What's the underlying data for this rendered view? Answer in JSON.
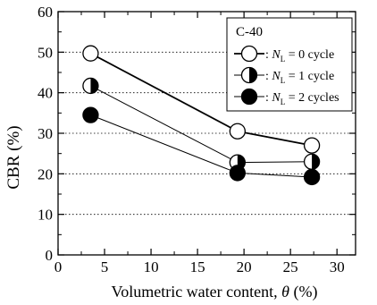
{
  "chart_data": {
    "type": "line",
    "title": "",
    "xlabel": "Volumetric water content, θ (%)",
    "ylabel": "CBR  (%)",
    "xlim": [
      0,
      32
    ],
    "ylim": [
      0,
      60
    ],
    "xticks": [
      0,
      5,
      10,
      15,
      20,
      25,
      30
    ],
    "yticks": [
      0,
      10,
      20,
      30,
      40,
      50,
      60
    ],
    "grid": true,
    "legend_position": "top-right",
    "legend_title": "C-40",
    "series": [
      {
        "name": ": N_L = 0 cycle",
        "name_parts": {
          "prefix": ": ",
          "var": "N",
          "sub": "L",
          "suffix": " = 0 cycle"
        },
        "marker": "open-circle",
        "line_width": 1.8,
        "x": [
          3.5,
          19.3,
          27.3
        ],
        "y": [
          49.7,
          30.5,
          27.0
        ]
      },
      {
        "name": ": N_L = 1 cycle",
        "name_parts": {
          "prefix": ": ",
          "var": "N",
          "sub": "L",
          "suffix": " = 1 cycle"
        },
        "marker": "half-filled-circle",
        "line_width": 1.0,
        "x": [
          3.5,
          19.3,
          27.3
        ],
        "y": [
          41.7,
          22.8,
          23.0
        ]
      },
      {
        "name": ": N_L = 2 cycles",
        "name_parts": {
          "prefix": ": ",
          "var": "N",
          "sub": "L",
          "suffix": " = 2 cycles"
        },
        "marker": "filled-circle",
        "line_width": 1.0,
        "x": [
          3.5,
          19.3,
          27.3
        ],
        "y": [
          34.5,
          20.2,
          19.2
        ]
      }
    ]
  }
}
